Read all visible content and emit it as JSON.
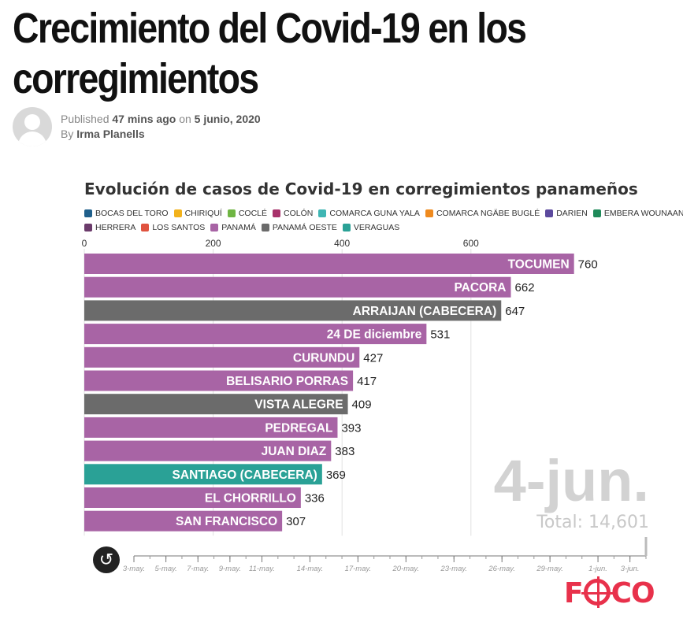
{
  "article": {
    "headline": "Crecimiento del Covid-19 en los corregimientos",
    "published_label": "Published",
    "published_ago": "47 mins ago",
    "on_label": "on",
    "published_date": "5 junio, 2020",
    "by_label": "By",
    "author": "Irma Planells"
  },
  "chart_data": {
    "type": "bar",
    "orientation": "horizontal",
    "title": "Evolución de casos de Covid-19 en corregimientos panameños",
    "xlim": [
      0,
      760
    ],
    "xticks": [
      0,
      200,
      400,
      600
    ],
    "grid": true,
    "legend_position": "top",
    "legend": [
      {
        "name": "BOCAS DEL TORO",
        "color": "#1f5f8b"
      },
      {
        "name": "CHIRIQUÍ",
        "color": "#f2b21b"
      },
      {
        "name": "COCLÉ",
        "color": "#6fb543"
      },
      {
        "name": "COLÓN",
        "color": "#a8326b"
      },
      {
        "name": "COMARCA GUNA YALA",
        "color": "#3fb6b4"
      },
      {
        "name": "COMARCA NGÄBE BUGLÉ",
        "color": "#ef8a1e"
      },
      {
        "name": "DARIEN",
        "color": "#5c4a9e"
      },
      {
        "name": "EMBERA WOUNAAN",
        "color": "#1f8a5a"
      },
      {
        "name": "HERRERA",
        "color": "#6b3b6b"
      },
      {
        "name": "LOS SANTOS",
        "color": "#e0533f"
      },
      {
        "name": "PANAMÁ",
        "color": "#a864a5"
      },
      {
        "name": "PANAMÁ OESTE",
        "color": "#6b6b6b"
      },
      {
        "name": "VERAGUAS",
        "color": "#2aa196"
      }
    ],
    "categories": [
      "TOCUMEN",
      "PACORA",
      "ARRAIJAN (CABECERA)",
      "24 DE diciembre",
      "CURUNDU",
      "BELISARIO PORRAS",
      "VISTA ALEGRE",
      "PEDREGAL",
      "JUAN DIAZ",
      "SANTIAGO (CABECERA)",
      "EL CHORRILLO",
      "SAN FRANCISCO"
    ],
    "values": [
      760,
      662,
      647,
      531,
      427,
      417,
      409,
      393,
      383,
      369,
      336,
      307
    ],
    "bar_colors": [
      "#a864a5",
      "#a864a5",
      "#6b6b6b",
      "#a864a5",
      "#a864a5",
      "#a864a5",
      "#6b6b6b",
      "#a864a5",
      "#a864a5",
      "#2aa196",
      "#a864a5",
      "#a864a5"
    ],
    "date_label": "4-jun.",
    "total_label": "Total: 14,601",
    "timeline_ticks": [
      "3-may.",
      "5-may.",
      "7-may.",
      "9-may.",
      "11-may.",
      "14-may.",
      "17-may.",
      "20-may.",
      "23-may.",
      "26-may.",
      "29-may.",
      "1-jun.",
      "3-jun."
    ]
  },
  "controls": {
    "replay_icon": "replay-icon",
    "replay_glyph": "↺"
  },
  "brand": {
    "logo_left": "F",
    "logo_right": "CO"
  }
}
